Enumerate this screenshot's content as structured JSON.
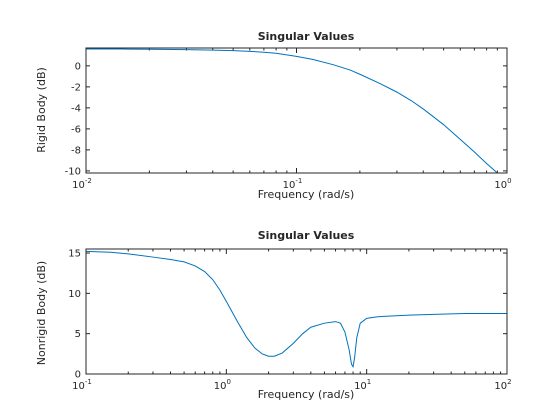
{
  "chart_data": [
    {
      "type": "line",
      "title": "Singular Values",
      "xlabel": "Frequency (rad/s)",
      "ylabel": "Rigid Body (dB)",
      "xscale": "log",
      "xlim": [
        0.01,
        1
      ],
      "ylim": [
        -10.2,
        1.7
      ],
      "yticks": [
        -10,
        -8,
        -6,
        -4,
        -2,
        0
      ],
      "xticks": [
        {
          "value": 0.01,
          "base": "10",
          "exp": "-2"
        },
        {
          "value": 0.1,
          "base": "10",
          "exp": "-1"
        },
        {
          "value": 1,
          "base": "10",
          "exp": "0"
        }
      ],
      "grid": false,
      "series": [
        {
          "color": "#0072bd",
          "x": [
            0.01,
            0.015,
            0.02,
            0.03,
            0.04,
            0.05,
            0.06,
            0.07,
            0.08,
            0.1,
            0.12,
            0.15,
            0.18,
            0.2,
            0.25,
            0.3,
            0.35,
            0.4,
            0.5,
            0.6,
            0.7,
            0.8,
            0.9,
            1.0
          ],
          "y": [
            1.6,
            1.6,
            1.58,
            1.55,
            1.5,
            1.45,
            1.38,
            1.3,
            1.2,
            0.9,
            0.6,
            0.1,
            -0.4,
            -0.8,
            -1.7,
            -2.5,
            -3.3,
            -4.1,
            -5.6,
            -7.0,
            -8.2,
            -9.3,
            -10.2,
            -10.8
          ]
        }
      ]
    },
    {
      "type": "line",
      "title": "Singular Values",
      "xlabel": "Frequency (rad/s)",
      "ylabel": "Nonrigid Body (dB)",
      "xscale": "log",
      "xlim": [
        0.1,
        100
      ],
      "ylim": [
        0,
        15.5
      ],
      "yticks": [
        0,
        5,
        10,
        15
      ],
      "xticks": [
        {
          "value": 0.1,
          "base": "10",
          "exp": "-1"
        },
        {
          "value": 1,
          "base": "10",
          "exp": "0"
        },
        {
          "value": 10,
          "base": "10",
          "exp": "1"
        },
        {
          "value": 100,
          "base": "10",
          "exp": "2"
        }
      ],
      "grid": false,
      "series": [
        {
          "color": "#0072bd",
          "x": [
            0.1,
            0.15,
            0.2,
            0.3,
            0.4,
            0.5,
            0.6,
            0.7,
            0.8,
            0.9,
            1.0,
            1.2,
            1.4,
            1.6,
            1.8,
            2.0,
            2.2,
            2.5,
            3.0,
            3.5,
            4.0,
            5.0,
            6.0,
            6.5,
            7.0,
            7.5,
            7.8,
            8.0,
            8.2,
            8.5,
            9.0,
            10.0,
            12.0,
            15.0,
            20.0,
            30.0,
            50.0,
            100.0
          ],
          "y": [
            15.2,
            15.1,
            14.9,
            14.5,
            14.2,
            13.9,
            13.4,
            12.7,
            11.7,
            10.4,
            9.0,
            6.5,
            4.5,
            3.2,
            2.5,
            2.2,
            2.2,
            2.6,
            3.8,
            5.0,
            5.8,
            6.3,
            6.5,
            6.3,
            5.2,
            3.0,
            1.2,
            0.9,
            2.0,
            4.5,
            6.3,
            6.9,
            7.1,
            7.2,
            7.3,
            7.4,
            7.5,
            7.5
          ]
        }
      ]
    }
  ]
}
